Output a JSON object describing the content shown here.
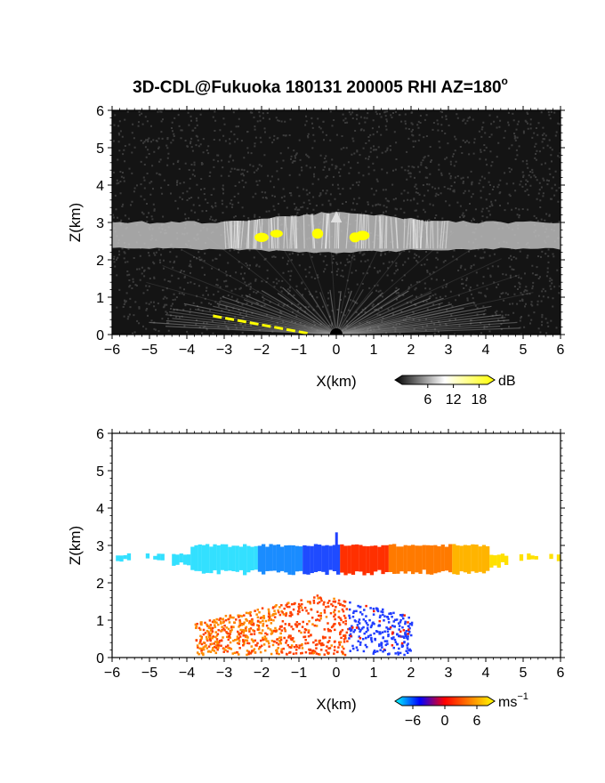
{
  "title": "3D-CDL@Fukuoka 180131 200005 RHI AZ=180",
  "title_suffix": "o",
  "chart_data": [
    {
      "type": "heatmap",
      "name": "backscatter",
      "xlabel": "X(km)",
      "ylabel": "Z(km)",
      "xlim": [
        -6,
        6
      ],
      "ylim": [
        0,
        6
      ],
      "xticks": [
        "-6",
        "-5",
        "-4",
        "-3",
        "-2",
        "-1",
        "0",
        "1",
        "2",
        "3",
        "4",
        "5",
        "6"
      ],
      "yticks": [
        "0",
        "1",
        "2",
        "3",
        "4",
        "5",
        "6"
      ],
      "colorbar": {
        "unit": "dB",
        "ticks": [
          "6",
          "12",
          "18"
        ],
        "min": 0,
        "max": 20,
        "colors": [
          "#000000",
          "#ffffff",
          "#ffff00"
        ]
      },
      "features": {
        "cloud_layer_km": [
          2.3,
          3.0
        ],
        "cloud_peak_height_km": 3.3,
        "low_fan_top_km": 1.2
      }
    },
    {
      "type": "heatmap",
      "name": "doppler",
      "xlabel": "X(km)",
      "ylabel": "Z(km)",
      "xlim": [
        -6,
        6
      ],
      "ylim": [
        0,
        6
      ],
      "xticks": [
        "-6",
        "-5",
        "-4",
        "-3",
        "-2",
        "-1",
        "0",
        "1",
        "2",
        "3",
        "4",
        "5",
        "6"
      ],
      "yticks": [
        "0",
        "1",
        "2",
        "3",
        "4",
        "5",
        "6"
      ],
      "colorbar": {
        "unit": "ms",
        "unit_exp": "−1",
        "ticks": [
          "−6",
          "0",
          "6"
        ],
        "min": -8,
        "max": 8,
        "colors": [
          "#00ffff",
          "#0000ff",
          "#ff0000",
          "#ff8000",
          "#ffff00"
        ]
      },
      "features": {
        "upper_layer_km": [
          2.2,
          3.0
        ],
        "lower_layer_km": [
          0.1,
          1.6
        ]
      }
    }
  ]
}
